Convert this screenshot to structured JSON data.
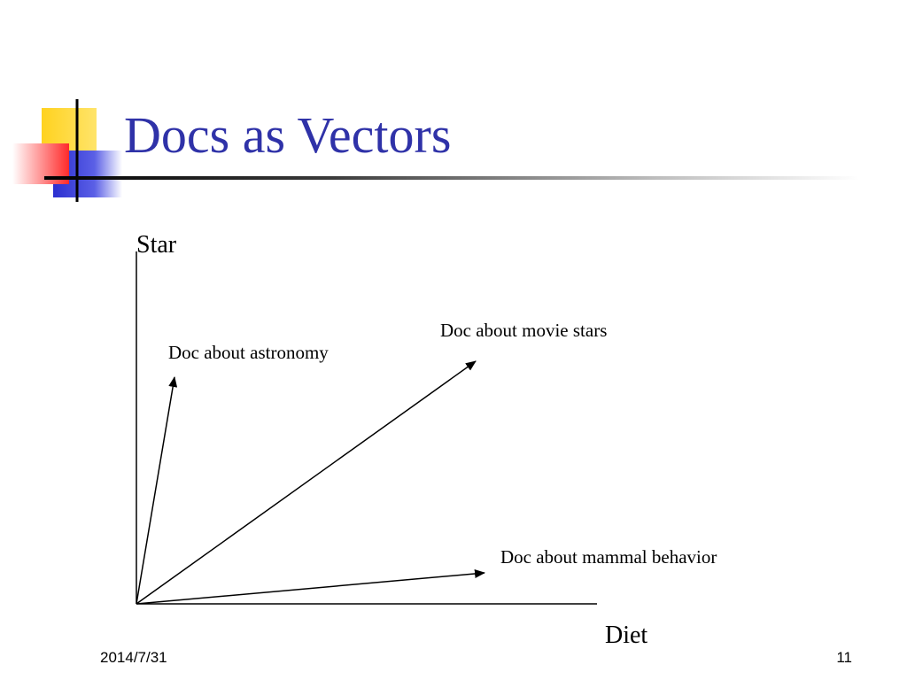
{
  "slide": {
    "title": "Docs as Vectors",
    "title_color": "#2f32a8"
  },
  "diagram": {
    "y_axis_label": "Star",
    "x_axis_label": "Diet",
    "vectors": [
      {
        "label": "Doc about astronomy"
      },
      {
        "label": "Doc about movie stars"
      },
      {
        "label": "Doc about mammal behavior"
      }
    ]
  },
  "footer": {
    "date": "2014/7/31",
    "page_number": "11"
  }
}
